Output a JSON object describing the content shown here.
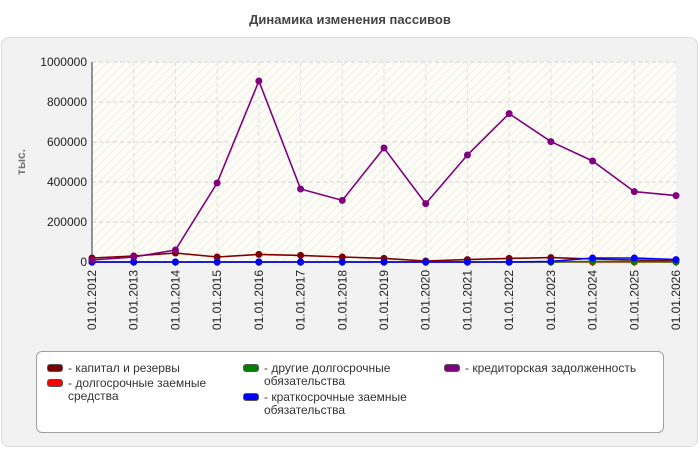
{
  "chart_data": {
    "type": "line",
    "title": "Динамика изменения пассивов",
    "ylabel": "тыс.",
    "xlabel": "",
    "ylim": [
      0,
      1000000
    ],
    "yticks": [
      0,
      200000,
      400000,
      600000,
      800000,
      1000000
    ],
    "categories": [
      "01.01.2012",
      "01.01.2013",
      "01.01.2014",
      "01.01.2015",
      "01.01.2016",
      "01.01.2017",
      "01.01.2018",
      "01.01.2019",
      "01.01.2020",
      "01.01.2021",
      "01.01.2022",
      "01.01.2023",
      "01.01.2024",
      "01.01.2025",
      "01.01.2026"
    ],
    "grid": true,
    "legend_position": "bottom",
    "series": [
      {
        "name": "капитал и резервы",
        "color": "#800000",
        "values": [
          20000,
          30000,
          45000,
          25000,
          38000,
          33000,
          25000,
          18000,
          5000,
          12000,
          18000,
          22000,
          15000,
          10000,
          5000
        ]
      },
      {
        "name": "долгосрочные заемные средства",
        "color": "#ff0000",
        "values": [
          0,
          0,
          0,
          0,
          0,
          0,
          0,
          0,
          0,
          0,
          0,
          0,
          0,
          0,
          0
        ]
      },
      {
        "name": "другие долгосрочные обязательства",
        "color": "#008000",
        "values": [
          0,
          0,
          0,
          0,
          0,
          0,
          0,
          0,
          0,
          0,
          0,
          0,
          3000,
          2000,
          1000
        ]
      },
      {
        "name": "краткосрочные заемные обязательства",
        "color": "#0000ff",
        "values": [
          0,
          0,
          0,
          0,
          0,
          0,
          0,
          0,
          0,
          0,
          0,
          3000,
          20000,
          20000,
          12000
        ]
      },
      {
        "name": "кредиторская задолженность",
        "color": "#800080",
        "values": [
          10000,
          25000,
          60000,
          395000,
          905000,
          365000,
          308000,
          570000,
          292000,
          535000,
          742000,
          602000,
          505000,
          352000,
          332000
        ]
      }
    ]
  },
  "legend": {
    "items": [
      {
        "label": "- капитал и резервы",
        "color": "#800000"
      },
      {
        "label": "- долгосрочные заемные средства",
        "color": "#ff0000"
      },
      {
        "label": "- другие долгосрочные обязательства",
        "color": "#008000"
      },
      {
        "label": "- краткосрочные заемные обязательства",
        "color": "#0000ff"
      },
      {
        "label": "- кредиторская задолженность",
        "color": "#800080"
      }
    ]
  }
}
